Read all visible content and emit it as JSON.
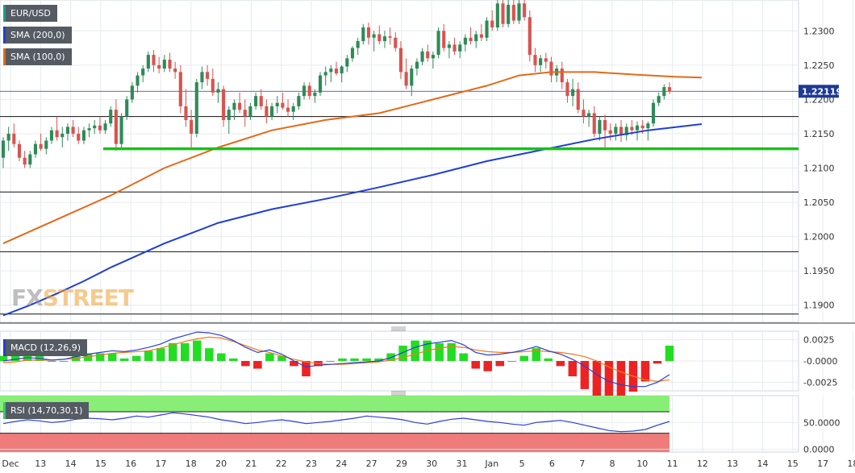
{
  "legends": {
    "symbol": "EUR/USD",
    "sma200": "SMA (200,0)",
    "sma100": "SMA (100,0)",
    "macd": "MACD (12,26,9)",
    "rsi": "RSI (14,70,30,1)"
  },
  "watermark": {
    "part1": "FX",
    "part2": "STREET"
  },
  "current_price_label": "1.22119",
  "colors": {
    "up": "#2e8b57",
    "down": "#d9534f",
    "sma200": "#1f3fd6",
    "sma100": "#e36a17",
    "support": "#19c219",
    "macd_line": "#2a3fd6",
    "signal_line": "#f07a1a",
    "hist_pos": "#22dd22",
    "hist_neg": "#ee2222",
    "rsi_over": "#88ee77",
    "rsi_under": "#f07b7b"
  },
  "chart_data": [
    {
      "type": "candlestick",
      "x_labels": [
        "Dec",
        "13",
        "14",
        "15",
        "16",
        "17",
        "18",
        "20",
        "21",
        "22",
        "23",
        "24",
        "27",
        "29",
        "30",
        "31",
        "Jan",
        "5",
        "6",
        "7",
        "8",
        "10",
        "11",
        "12",
        "13",
        "14",
        "15",
        "17",
        "18"
      ],
      "ylim": [
        1.1875,
        1.2345
      ],
      "y_ticks": [
        "1.2300",
        "1.2250",
        "1.2200",
        "1.2150",
        "1.2100",
        "1.2050",
        "1.2000",
        "1.1950",
        "1.1900"
      ],
      "y_tick_values": [
        1.23,
        1.225,
        1.22,
        1.215,
        1.21,
        1.205,
        1.2,
        1.195,
        1.19
      ],
      "last_price": 1.22119,
      "horizontal_levels": [
        1.2175,
        1.2065,
        1.1978,
        1.1887
      ],
      "support_level": 1.2128,
      "sma200": [
        [
          0,
          1.1885
        ],
        [
          5,
          1.19
        ],
        [
          10,
          1.1917
        ],
        [
          15,
          1.1935
        ],
        [
          20,
          1.1955
        ],
        [
          30,
          1.199
        ],
        [
          40,
          1.202
        ],
        [
          50,
          1.204
        ],
        [
          60,
          1.2055
        ],
        [
          70,
          1.2072
        ],
        [
          80,
          1.209
        ],
        [
          90,
          1.211
        ],
        [
          100,
          1.2126
        ],
        [
          110,
          1.2142
        ],
        [
          120,
          1.2155
        ],
        [
          130,
          1.2164
        ]
      ],
      "sma100": [
        [
          0,
          1.199
        ],
        [
          10,
          1.2025
        ],
        [
          20,
          1.206
        ],
        [
          30,
          1.21
        ],
        [
          40,
          1.213
        ],
        [
          50,
          1.2155
        ],
        [
          60,
          1.217
        ],
        [
          70,
          1.218
        ],
        [
          80,
          1.22
        ],
        [
          90,
          1.222
        ],
        [
          96,
          1.2235
        ],
        [
          102,
          1.224
        ],
        [
          110,
          1.224
        ],
        [
          118,
          1.2236
        ],
        [
          125,
          1.2233
        ],
        [
          130,
          1.2232
        ]
      ],
      "candles": [
        [
          1.2115,
          1.2145,
          1.21,
          1.214
        ],
        [
          1.214,
          1.216,
          1.2125,
          1.215
        ],
        [
          1.215,
          1.2165,
          1.213,
          1.2135
        ],
        [
          1.2135,
          1.214,
          1.211,
          1.2115
        ],
        [
          1.2115,
          1.2125,
          1.21,
          1.2105
        ],
        [
          1.2105,
          1.2125,
          1.21,
          1.212
        ],
        [
          1.212,
          1.214,
          1.2115,
          1.2135
        ],
        [
          1.2135,
          1.215,
          1.2125,
          1.2128
        ],
        [
          1.2128,
          1.2145,
          1.212,
          1.214
        ],
        [
          1.214,
          1.216,
          1.2135,
          1.2155
        ],
        [
          1.2155,
          1.2175,
          1.214,
          1.2145
        ],
        [
          1.2145,
          1.216,
          1.213,
          1.215
        ],
        [
          1.215,
          1.2165,
          1.214,
          1.216
        ],
        [
          1.216,
          1.217,
          1.2145,
          1.215
        ],
        [
          1.215,
          1.216,
          1.2135,
          1.214
        ],
        [
          1.214,
          1.216,
          1.2135,
          1.2155
        ],
        [
          1.2155,
          1.2165,
          1.2145,
          1.2158
        ],
        [
          1.2158,
          1.217,
          1.215,
          1.2162
        ],
        [
          1.2162,
          1.2175,
          1.215,
          1.2155
        ],
        [
          1.2155,
          1.217,
          1.215,
          1.2165
        ],
        [
          1.2165,
          1.219,
          1.216,
          1.2185
        ],
        [
          1.2185,
          1.22,
          1.2125,
          1.2135
        ],
        [
          1.2135,
          1.218,
          1.213,
          1.2175
        ],
        [
          1.2175,
          1.2205,
          1.217,
          1.22
        ],
        [
          1.22,
          1.2225,
          1.2195,
          1.222
        ],
        [
          1.222,
          1.224,
          1.221,
          1.2235
        ],
        [
          1.2235,
          1.225,
          1.2225,
          1.2245
        ],
        [
          1.2245,
          1.227,
          1.224,
          1.2265
        ],
        [
          1.2265,
          1.2272,
          1.224,
          1.225
        ],
        [
          1.225,
          1.2262,
          1.2238,
          1.2245
        ],
        [
          1.2245,
          1.2265,
          1.224,
          1.2258
        ],
        [
          1.2258,
          1.2268,
          1.224,
          1.2245
        ],
        [
          1.2245,
          1.2255,
          1.223,
          1.224
        ],
        [
          1.224,
          1.225,
          1.218,
          1.219
        ],
        [
          1.219,
          1.2215,
          1.216,
          1.217
        ],
        [
          1.217,
          1.2185,
          1.213,
          1.215
        ],
        [
          1.215,
          1.223,
          1.2145,
          1.2225
        ],
        [
          1.2225,
          1.2248,
          1.2215,
          1.224
        ],
        [
          1.224,
          1.225,
          1.222,
          1.223
        ],
        [
          1.223,
          1.2245,
          1.2205,
          1.221
        ],
        [
          1.221,
          1.2225,
          1.2195,
          1.2215
        ],
        [
          1.2215,
          1.222,
          1.216,
          1.217
        ],
        [
          1.217,
          1.219,
          1.215,
          1.2185
        ],
        [
          1.2185,
          1.22,
          1.217,
          1.2195
        ],
        [
          1.2195,
          1.221,
          1.218,
          1.2185
        ],
        [
          1.2185,
          1.22,
          1.216,
          1.2175
        ],
        [
          1.2175,
          1.2195,
          1.217,
          1.219
        ],
        [
          1.219,
          1.221,
          1.2185,
          1.2205
        ],
        [
          1.2205,
          1.2215,
          1.2185,
          1.219
        ],
        [
          1.219,
          1.22,
          1.2165,
          1.2175
        ],
        [
          1.2175,
          1.2195,
          1.217,
          1.219
        ],
        [
          1.219,
          1.2205,
          1.218,
          1.2195
        ],
        [
          1.2195,
          1.221,
          1.2185,
          1.2188
        ],
        [
          1.2188,
          1.22,
          1.2175,
          1.2182
        ],
        [
          1.2182,
          1.2195,
          1.217,
          1.219
        ],
        [
          1.219,
          1.221,
          1.2185,
          1.2205
        ],
        [
          1.2205,
          1.2225,
          1.22,
          1.222
        ],
        [
          1.222,
          1.2225,
          1.22,
          1.2205
        ],
        [
          1.2205,
          1.2215,
          1.2195,
          1.221
        ],
        [
          1.221,
          1.224,
          1.2205,
          1.2235
        ],
        [
          1.2235,
          1.2248,
          1.222,
          1.224
        ],
        [
          1.224,
          1.225,
          1.2225,
          1.2245
        ],
        [
          1.2245,
          1.2255,
          1.2235,
          1.2238
        ],
        [
          1.2238,
          1.225,
          1.2225,
          1.2248
        ],
        [
          1.2248,
          1.2265,
          1.224,
          1.226
        ],
        [
          1.226,
          1.2278,
          1.2255,
          1.2275
        ],
        [
          1.2275,
          1.229,
          1.2265,
          1.2285
        ],
        [
          1.2285,
          1.231,
          1.228,
          1.2305
        ],
        [
          1.2305,
          1.2312,
          1.228,
          1.229
        ],
        [
          1.229,
          1.23,
          1.227,
          1.2295
        ],
        [
          1.2295,
          1.2308,
          1.228,
          1.2285
        ],
        [
          1.2285,
          1.23,
          1.2275,
          1.2292
        ],
        [
          1.2292,
          1.2305,
          1.228,
          1.229
        ],
        [
          1.229,
          1.2298,
          1.227,
          1.2275
        ],
        [
          1.2275,
          1.2285,
          1.223,
          1.224
        ],
        [
          1.224,
          1.226,
          1.2215,
          1.222
        ],
        [
          1.222,
          1.225,
          1.2205,
          1.2245
        ],
        [
          1.2245,
          1.226,
          1.2235,
          1.2255
        ],
        [
          1.2255,
          1.2275,
          1.225,
          1.227
        ],
        [
          1.227,
          1.228,
          1.2255,
          1.226
        ],
        [
          1.226,
          1.227,
          1.2245,
          1.2265
        ],
        [
          1.2265,
          1.2305,
          1.226,
          1.23
        ],
        [
          1.23,
          1.231,
          1.227,
          1.2275
        ],
        [
          1.2275,
          1.2285,
          1.226,
          1.228
        ],
        [
          1.228,
          1.229,
          1.2265,
          1.227
        ],
        [
          1.227,
          1.2285,
          1.226,
          1.228
        ],
        [
          1.228,
          1.2295,
          1.227,
          1.229
        ],
        [
          1.229,
          1.2305,
          1.228,
          1.2285
        ],
        [
          1.2285,
          1.23,
          1.2275,
          1.2295
        ],
        [
          1.2295,
          1.231,
          1.2285,
          1.229
        ],
        [
          1.229,
          1.232,
          1.2285,
          1.2315
        ],
        [
          1.2315,
          1.233,
          1.23,
          1.2305
        ],
        [
          1.2305,
          1.2345,
          1.23,
          1.234
        ],
        [
          1.234,
          1.2347,
          1.2305,
          1.231
        ],
        [
          1.231,
          1.2345,
          1.2305,
          1.2338
        ],
        [
          1.2338,
          1.2345,
          1.231,
          1.2315
        ],
        [
          1.2315,
          1.2345,
          1.231,
          1.234
        ],
        [
          1.234,
          1.2345,
          1.2315,
          1.232
        ],
        [
          1.232,
          1.233,
          1.2255,
          1.2265
        ],
        [
          1.2265,
          1.2275,
          1.224,
          1.225
        ],
        [
          1.225,
          1.2265,
          1.224,
          1.226
        ],
        [
          1.226,
          1.2268,
          1.2245,
          1.2255
        ],
        [
          1.2255,
          1.2262,
          1.2225,
          1.2235
        ],
        [
          1.2235,
          1.225,
          1.2225,
          1.2245
        ],
        [
          1.2245,
          1.2255,
          1.2215,
          1.2225
        ],
        [
          1.2225,
          1.223,
          1.2195,
          1.2205
        ],
        [
          1.2205,
          1.223,
          1.219,
          1.2215
        ],
        [
          1.2215,
          1.2225,
          1.218,
          1.2185
        ],
        [
          1.2185,
          1.22,
          1.2165,
          1.2175
        ],
        [
          1.2175,
          1.2185,
          1.216,
          1.218
        ],
        [
          1.218,
          1.219,
          1.2145,
          1.215
        ],
        [
          1.215,
          1.2175,
          1.214,
          1.217
        ],
        [
          1.217,
          1.2178,
          1.213,
          1.2155
        ],
        [
          1.2155,
          1.2165,
          1.214,
          1.215
        ],
        [
          1.215,
          1.2165,
          1.214,
          1.216
        ],
        [
          1.216,
          1.217,
          1.2138,
          1.2148
        ],
        [
          1.2148,
          1.2165,
          1.214,
          1.216
        ],
        [
          1.216,
          1.217,
          1.2148,
          1.2155
        ],
        [
          1.2155,
          1.2168,
          1.214,
          1.2162
        ],
        [
          1.2162,
          1.217,
          1.215,
          1.2158
        ],
        [
          1.2158,
          1.2168,
          1.214,
          1.2165
        ],
        [
          1.2165,
          1.22,
          1.216,
          1.2195
        ],
        [
          1.2195,
          1.221,
          1.219,
          1.2205
        ],
        [
          1.2205,
          1.2222,
          1.22,
          1.2218
        ],
        [
          1.2218,
          1.2225,
          1.2208,
          1.2212
        ]
      ]
    },
    {
      "type": "macd",
      "y_ticks": [
        "0.0025",
        "-0.0000",
        "-0.0025"
      ],
      "y_tick_values": [
        0.0025,
        0.0,
        -0.0025
      ],
      "ylim": [
        -0.0035,
        0.0035
      ],
      "macd": [
        0.0,
        0.0002,
        0.0004,
        0.0003,
        0.0001,
        0.0002,
        0.0005,
        0.0008,
        0.001,
        0.0012,
        0.0011,
        0.0013,
        0.0016,
        0.002,
        0.0026,
        0.003,
        0.0034,
        0.0033,
        0.003,
        0.0024,
        0.0016,
        0.001,
        0.0013,
        0.0008,
        0.0,
        -0.0007,
        -0.0005,
        -0.0004,
        -0.0003,
        -0.0002,
        -0.0001,
        0.0,
        0.0004,
        0.001,
        0.0016,
        0.002,
        0.0022,
        0.0024,
        0.0019,
        0.001,
        0.0007,
        0.0008,
        0.001,
        0.0013,
        0.0017,
        0.0012,
        0.0008,
        0.0002,
        -0.0006,
        -0.0016,
        -0.0024,
        -0.0028,
        -0.003,
        -0.003,
        -0.0025,
        -0.0016
      ],
      "signal": [
        -0.0002,
        -0.0001,
        0.0001,
        0.0001,
        0.0001,
        0.0002,
        0.0003,
        0.0005,
        0.0007,
        0.0009,
        0.001,
        0.0011,
        0.0012,
        0.0015,
        0.0019,
        0.0023,
        0.0026,
        0.0028,
        0.0027,
        0.0023,
        0.0018,
        0.0013,
        0.001,
        0.0006,
        0.0002,
        -0.0001,
        -0.0003,
        -0.0004,
        -0.0004,
        -0.0003,
        -0.0002,
        -0.0001,
        0.0001,
        0.0004,
        0.0008,
        0.0012,
        0.0015,
        0.0017,
        0.0016,
        0.0013,
        0.0011,
        0.001,
        0.001,
        0.0011,
        0.0012,
        0.0011,
        0.001,
        0.0008,
        0.0005,
        0.0,
        -0.0007,
        -0.0013,
        -0.0018,
        -0.0022,
        -0.0024,
        -0.0022
      ]
    },
    {
      "type": "rsi",
      "y_ticks": [
        "50.0000",
        "0.0000"
      ],
      "y_tick_values": [
        50,
        0
      ],
      "ylim": [
        -5,
        100
      ],
      "overbought": 70,
      "oversold": 30,
      "rsi": [
        48,
        52,
        55,
        53,
        50,
        52,
        56,
        58,
        57,
        55,
        58,
        62,
        60,
        64,
        68,
        66,
        63,
        60,
        55,
        52,
        48,
        50,
        53,
        55,
        52,
        48,
        50,
        52,
        55,
        58,
        62,
        60,
        58,
        55,
        50,
        47,
        52,
        56,
        58,
        55,
        52,
        50,
        47,
        45,
        50,
        52,
        54,
        50,
        45,
        40,
        35,
        33,
        34,
        37,
        45,
        52
      ]
    }
  ]
}
